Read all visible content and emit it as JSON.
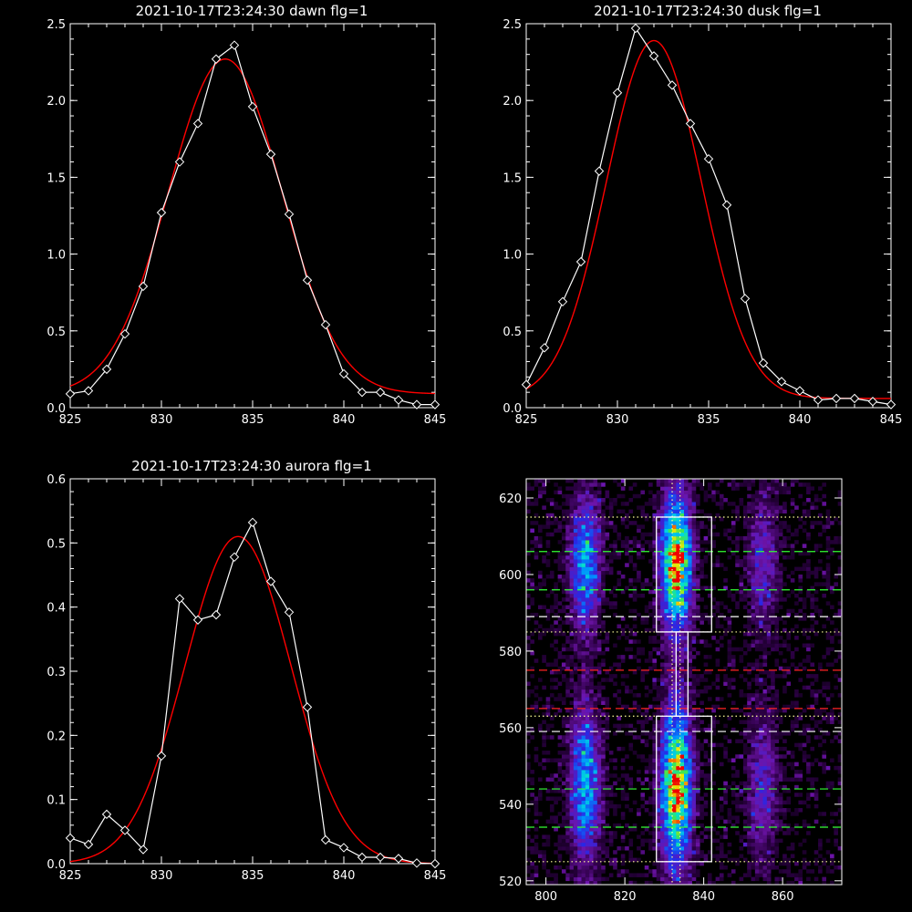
{
  "chart_data": [
    {
      "type": "line",
      "title": "2021-10-17T23:24:30 dawn flg=1",
      "xlim": [
        825,
        845
      ],
      "ylim": [
        0.0,
        2.5
      ],
      "xticks": [
        "825",
        "830",
        "835",
        "840",
        "845"
      ],
      "yticks": [
        "0.0",
        "0.5",
        "1.0",
        "1.5",
        "2.0",
        "2.5"
      ],
      "colors": {
        "data": "#ffffff",
        "fit": "#ff0000"
      },
      "series": [
        {
          "role": "data",
          "x": [
            825,
            826,
            827,
            828,
            829,
            830,
            831,
            832,
            833,
            834,
            835,
            836,
            837,
            838,
            839,
            840,
            841,
            842,
            843,
            844,
            845
          ],
          "values": [
            0.09,
            0.11,
            0.25,
            0.48,
            0.79,
            1.27,
            1.6,
            1.85,
            2.27,
            2.36,
            1.96,
            1.65,
            1.26,
            0.83,
            0.54,
            0.22,
            0.1,
            0.1,
            0.05,
            0.02,
            0.02
          ]
        },
        {
          "role": "fit",
          "curve": "gaussian",
          "amplitude": 2.18,
          "center": 833.5,
          "sigma": 3.1,
          "offset": 0.09
        }
      ]
    },
    {
      "type": "line",
      "title": "2021-10-17T23:24:30 dusk flg=1",
      "xlim": [
        825,
        845
      ],
      "ylim": [
        0.0,
        2.5
      ],
      "xticks": [
        "825",
        "830",
        "835",
        "840",
        "845"
      ],
      "yticks": [
        "0.0",
        "0.5",
        "1.0",
        "1.5",
        "2.0",
        "2.5"
      ],
      "colors": {
        "data": "#ffffff",
        "fit": "#ff0000"
      },
      "series": [
        {
          "role": "data",
          "x": [
            825,
            826,
            827,
            828,
            829,
            830,
            831,
            832,
            833,
            834,
            835,
            836,
            837,
            838,
            839,
            840,
            841,
            842,
            843,
            844,
            845
          ],
          "values": [
            0.15,
            0.39,
            0.69,
            0.95,
            1.54,
            2.05,
            2.47,
            2.29,
            2.1,
            1.85,
            1.62,
            1.32,
            0.71,
            0.29,
            0.17,
            0.11,
            0.05,
            0.06,
            0.06,
            0.04,
            0.02
          ]
        },
        {
          "role": "fit",
          "curve": "gaussian",
          "amplitude": 2.33,
          "center": 832.0,
          "sigma": 2.6,
          "offset": 0.06
        }
      ]
    },
    {
      "type": "line",
      "title": "2021-10-17T23:24:30 aurora flg=1",
      "xlim": [
        825,
        845
      ],
      "ylim": [
        0.0,
        0.6
      ],
      "xticks": [
        "825",
        "830",
        "835",
        "840",
        "845"
      ],
      "yticks": [
        "0.0",
        "0.1",
        "0.2",
        "0.3",
        "0.4",
        "0.5",
        "0.6"
      ],
      "colors": {
        "data": "#ffffff",
        "fit": "#ff0000"
      },
      "series": [
        {
          "role": "data",
          "x": [
            825,
            826,
            827,
            828,
            829,
            830,
            831,
            832,
            833,
            834,
            835,
            836,
            837,
            838,
            839,
            840,
            841,
            842,
            843,
            844,
            845
          ],
          "values": [
            0.04,
            0.03,
            0.077,
            0.052,
            0.022,
            0.168,
            0.413,
            0.38,
            0.388,
            0.478,
            0.532,
            0.44,
            0.392,
            0.244,
            0.037,
            0.025,
            0.01,
            0.01,
            0.008,
            0.001,
            0.0
          ]
        },
        {
          "role": "fit",
          "curve": "gaussian",
          "amplitude": 0.51,
          "center": 834.2,
          "sigma": 2.9,
          "offset": 0.0
        }
      ]
    },
    {
      "type": "heatmap",
      "xlim": [
        795,
        875
      ],
      "ylim": [
        519,
        625
      ],
      "xticks": [
        "800",
        "820",
        "840",
        "860"
      ],
      "yticks": [
        "520",
        "540",
        "560",
        "580",
        "600",
        "620"
      ],
      "colors": {
        "boxes": "#ffffff",
        "dotted": "#ffff99",
        "green_dash": "#33ff33",
        "white_dash": "#ffffff",
        "red_dash": "#ff2222"
      },
      "emission_columns": [
        {
          "x": 810,
          "intensity": 0.55
        },
        {
          "x": 833,
          "intensity": 1.0
        },
        {
          "x": 855,
          "intensity": 0.28
        }
      ],
      "emission_bands": [
        {
          "y": 603,
          "half_height": 11
        },
        {
          "y": 545,
          "half_height": 13
        }
      ],
      "boxes": [
        {
          "x0": 828,
          "x1": 842,
          "y0": 585,
          "y1": 615
        },
        {
          "x0": 833,
          "x1": 836,
          "y0": 563,
          "y1": 585
        },
        {
          "x0": 828,
          "x1": 842,
          "y0": 525,
          "y1": 563
        }
      ],
      "vertical_dotted_x": [
        832,
        834
      ],
      "horizontal_lines": [
        {
          "y": 615,
          "style": "dotted"
        },
        {
          "y": 606,
          "style": "green_dash"
        },
        {
          "y": 596,
          "style": "green_dash"
        },
        {
          "y": 589,
          "style": "white_dash"
        },
        {
          "y": 585,
          "style": "dotted"
        },
        {
          "y": 575,
          "style": "red_dash"
        },
        {
          "y": 565,
          "style": "red_dash"
        },
        {
          "y": 563,
          "style": "dotted"
        },
        {
          "y": 559,
          "style": "white_dash"
        },
        {
          "y": 544,
          "style": "green_dash"
        },
        {
          "y": 534,
          "style": "green_dash"
        },
        {
          "y": 525,
          "style": "dotted"
        }
      ]
    }
  ]
}
